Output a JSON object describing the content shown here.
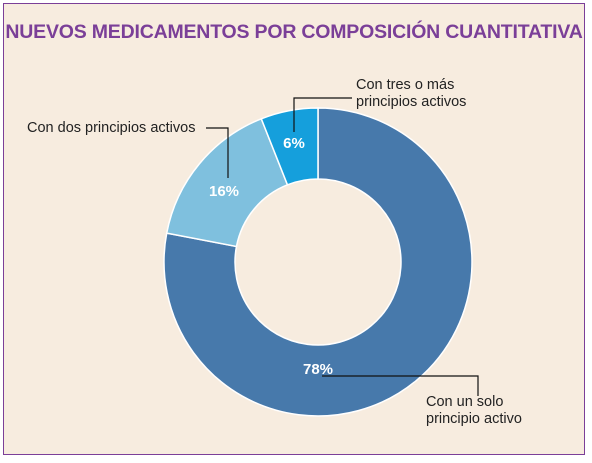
{
  "chart_data": {
    "type": "pie",
    "title": "NUEVOS MEDICAMENTOS POR COMPOSICIÓN CUANTITATIVA",
    "slices": [
      {
        "label_lines": [
          "Con un solo",
          "principio activo"
        ],
        "value": 78,
        "value_label": "78%",
        "color": "#4779ab"
      },
      {
        "label_lines": [
          "Con dos principios activos"
        ],
        "value": 16,
        "value_label": "16%",
        "color": "#7fc0de"
      },
      {
        "label_lines": [
          "Con tres o más",
          "principios activos"
        ],
        "value": 6,
        "value_label": "6%",
        "color": "#159fdc"
      }
    ]
  },
  "colors": {
    "background": "#f7ecdf",
    "border": "#7b3f98",
    "title": "#7b3f98"
  }
}
